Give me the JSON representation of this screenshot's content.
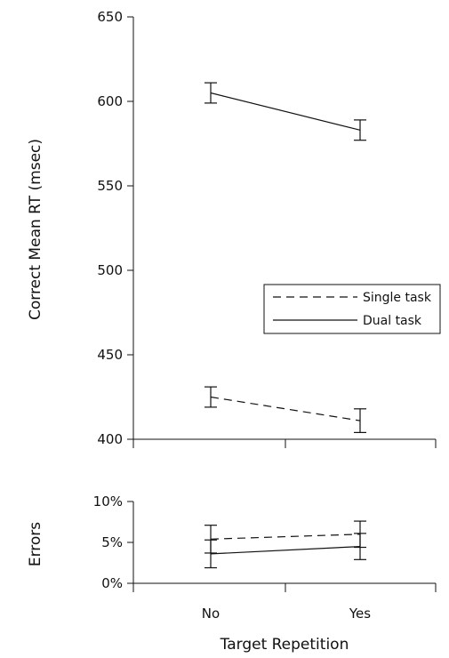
{
  "chart_data": [
    {
      "type": "line",
      "ylabel": "Correct Mean RT (msec)",
      "ylim": [
        400,
        650
      ],
      "yticks": [
        "650",
        "600",
        "550",
        "500",
        "450",
        "400"
      ],
      "categories": [
        "No",
        "Yes"
      ],
      "legend": {
        "placement": "center-right",
        "entries": [
          "Single task",
          "Dual task"
        ]
      },
      "series": [
        {
          "name": "Single task",
          "style": "dashed",
          "values": [
            425,
            411
          ],
          "error": [
            6,
            7
          ]
        },
        {
          "name": "Dual task",
          "style": "solid",
          "values": [
            605,
            583
          ],
          "error": [
            6,
            6
          ]
        }
      ]
    },
    {
      "type": "line",
      "ylabel": "Errors",
      "ylim": [
        0,
        10
      ],
      "yticks": [
        "10%",
        "5%",
        "0%"
      ],
      "categories": [
        "No",
        "Yes"
      ],
      "xlabel": "Target Repetition",
      "series": [
        {
          "name": "Single task",
          "style": "dashed",
          "values": [
            5.4,
            6.0
          ],
          "error": [
            1.7,
            1.6
          ]
        },
        {
          "name": "Dual task",
          "style": "solid",
          "values": [
            3.6,
            4.5
          ],
          "error": [
            1.7,
            1.6
          ]
        }
      ]
    }
  ],
  "colors": {
    "ink": "#111111"
  }
}
